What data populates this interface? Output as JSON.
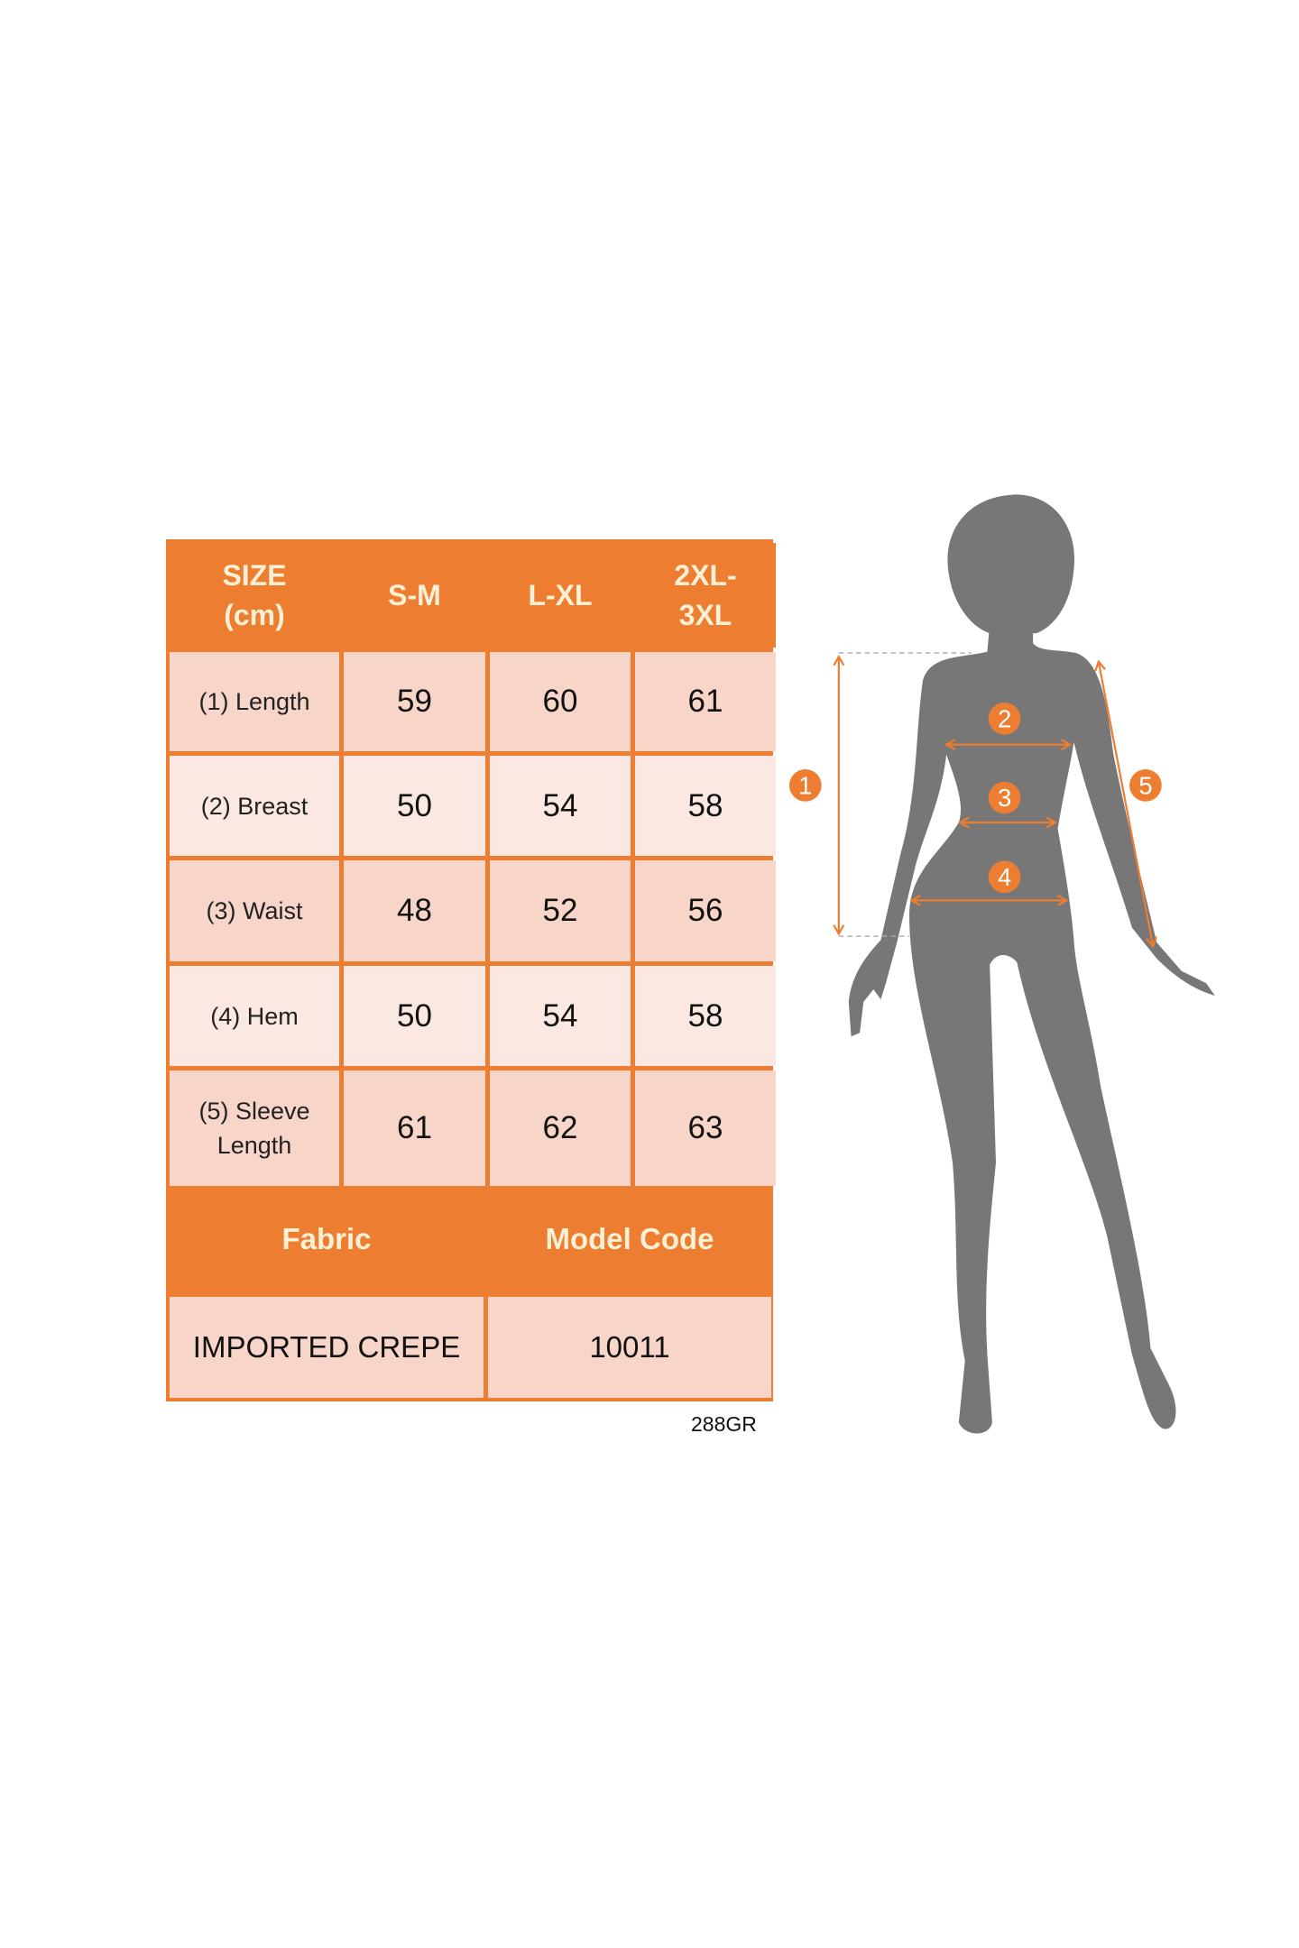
{
  "size_table": {
    "header": [
      "SIZE\n(cm)",
      "S-M",
      "L-XL",
      "2XL-\n3XL"
    ],
    "header_lines": [
      [
        "SIZE",
        "(cm)"
      ],
      [
        "S-M"
      ],
      [
        "L-XL"
      ],
      [
        "2XL-",
        "3XL"
      ]
    ],
    "rows": [
      {
        "label": "(1) Length",
        "values": [
          "59",
          "60",
          "61"
        ]
      },
      {
        "label": "(2) Breast",
        "values": [
          "50",
          "54",
          "58"
        ]
      },
      {
        "label": "(3) Waist",
        "values": [
          "48",
          "52",
          "56"
        ]
      },
      {
        "label": "(4) Hem",
        "values": [
          "50",
          "54",
          "58"
        ]
      },
      {
        "label_lines": [
          "(5) Sleeve",
          "Length"
        ],
        "values": [
          "61",
          "62",
          "63"
        ]
      }
    ],
    "footer_headers": [
      "Fabric",
      "Model Code"
    ],
    "footer_values": [
      "IMPORTED CREPE",
      "10011"
    ]
  },
  "product_code": "288GR",
  "diagram": {
    "markers": [
      "1",
      "2",
      "3",
      "4",
      "5"
    ]
  },
  "colors": {
    "accent": "#ed7d31",
    "header_text": "#fdf0d5",
    "cell_dark": "#f8d5c9",
    "cell_light": "#fbe8e2",
    "silhouette": "#777777"
  }
}
